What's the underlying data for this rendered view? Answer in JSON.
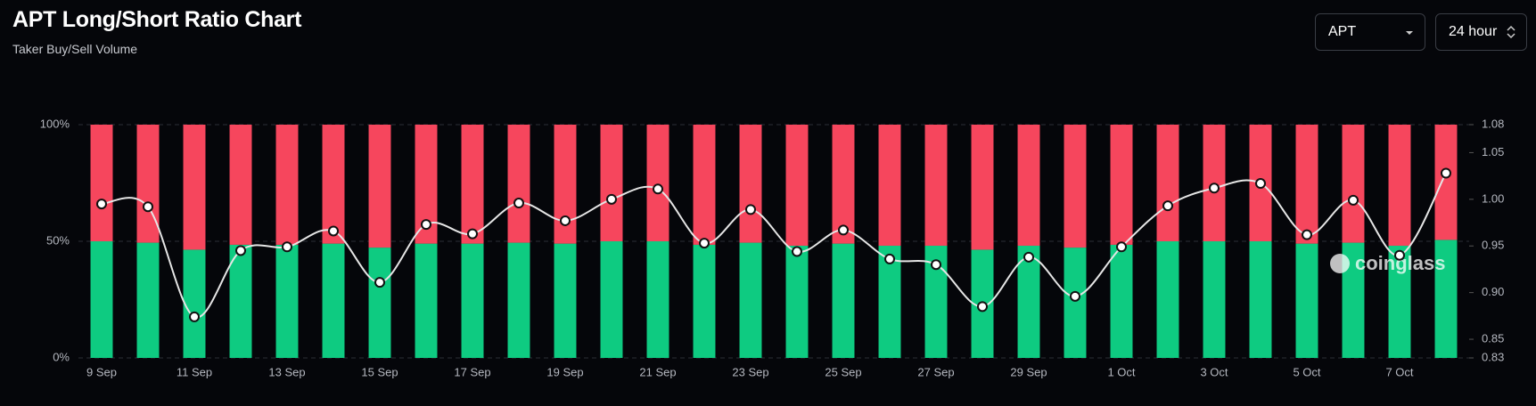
{
  "header": {
    "title": "APT Long/Short Ratio Chart",
    "subtitle": "Taker Buy/Sell Volume"
  },
  "controls": {
    "symbol": "APT",
    "interval": "24 hour"
  },
  "watermark": "coinglass",
  "chart_data": {
    "type": "bar",
    "categories": [
      "9 Sep",
      null,
      "11 Sep",
      null,
      "13 Sep",
      null,
      "15 Sep",
      null,
      "17 Sep",
      null,
      "19 Sep",
      null,
      "21 Sep",
      null,
      "23 Sep",
      null,
      "25 Sep",
      null,
      "27 Sep",
      null,
      "29 Sep",
      null,
      "1 Oct",
      null,
      "3 Oct",
      null,
      "5 Oct",
      null,
      "7 Oct",
      null
    ],
    "series": [
      {
        "color": "#0ecb81",
        "values": [
          50,
          49.4,
          46.4,
          48.5,
          48.5,
          49,
          47.3,
          49,
          49,
          49.4,
          49,
          50,
          50,
          48.5,
          49.4,
          48.1,
          49,
          48.1,
          48.1,
          46.4,
          48.1,
          47.3,
          48.5,
          50,
          50,
          50,
          49,
          49.4,
          48.1,
          50.6
        ]
      },
      {
        "color": "#f6465d",
        "values": [
          50,
          50.6,
          53.6,
          51.5,
          51.5,
          51,
          52.7,
          51,
          51,
          50.6,
          51,
          50,
          50,
          51.5,
          50.6,
          51.9,
          51,
          51.9,
          51.9,
          53.6,
          51.9,
          52.7,
          51.5,
          50,
          50,
          50,
          51,
          50.6,
          51.9,
          49.4
        ]
      },
      {
        "type": "line",
        "axis": "y2",
        "color": "#e6e6e6",
        "values": [
          0.995,
          0.992,
          0.874,
          0.945,
          0.949,
          0.966,
          0.911,
          0.973,
          0.963,
          0.996,
          0.977,
          1.0,
          1.011,
          0.953,
          0.989,
          0.944,
          0.967,
          0.936,
          0.93,
          0.885,
          0.938,
          0.896,
          0.949,
          0.993,
          1.012,
          1.017,
          0.962,
          0.999,
          0.94,
          1.028
        ]
      }
    ],
    "ylim": [
      0,
      100
    ],
    "yticks": [
      {
        "value": 0,
        "label": "0%"
      },
      {
        "value": 50,
        "label": "50%"
      },
      {
        "value": 100,
        "label": "100%"
      }
    ],
    "y2lim": [
      0.83,
      1.08
    ],
    "y2ticks": [
      0.83,
      0.85,
      {
        "value": 0.9,
        "label": "0.90"
      },
      0.95,
      {
        "value": 1,
        "label": "1.00"
      },
      1.05,
      1.08
    ],
    "grid": true
  }
}
